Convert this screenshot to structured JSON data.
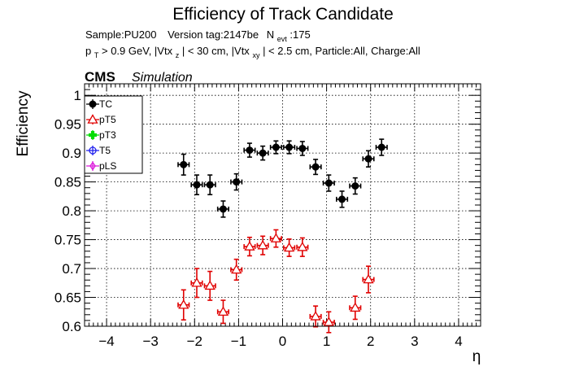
{
  "header": {
    "title": "Efficiency of Track Candidate",
    "info_line1": {
      "sample": "Sample:PU200",
      "version": "Version tag:2147be",
      "nevt_symbol": "N",
      "nevt_sub": "evt",
      "nevt_value": ":175"
    },
    "info_line2": {
      "pt_symbol": "p",
      "pt_sub": "T",
      "pt_cut": " > 0.9 GeV, |Vtx",
      "z_sub": "z",
      "z_cut": "| < 30 cm, |Vtx",
      "xy_sub": "xy",
      "rest": "| < 2.5 cm, Particle:All, Charge:All"
    },
    "cms_label": "CMS",
    "simulation_label": "Simulation"
  },
  "chart_data": {
    "type": "scatter",
    "xlabel": "η",
    "ylabel": "Efficiency",
    "xlim": [
      -4.5,
      4.5
    ],
    "ylim": [
      0.6,
      1.02
    ],
    "xticks": [
      -4,
      -3,
      -2,
      -1,
      0,
      1,
      2,
      3,
      4
    ],
    "xtick_labels": [
      "−4",
      "−3",
      "−2",
      "−1",
      "0",
      "1",
      "2",
      "3",
      "4"
    ],
    "yticks": [
      0.6,
      0.65,
      0.7,
      0.75,
      0.8,
      0.85,
      0.9,
      0.95,
      1.0
    ],
    "ytick_labels": [
      "0.6",
      "0.65",
      "0.7",
      "0.75",
      "0.8",
      "0.85",
      "0.9",
      "0.95",
      "1"
    ],
    "grid": true,
    "legend_position": "top-left",
    "x_bin_half_width": 0.125,
    "series": [
      {
        "name": "TC",
        "color": "#000000",
        "marker": "filled-circle",
        "x": [
          -2.25,
          -1.95,
          -1.65,
          -1.35,
          -1.05,
          -0.75,
          -0.45,
          -0.15,
          0.15,
          0.45,
          0.75,
          1.05,
          1.35,
          1.65,
          1.95,
          2.25
        ],
        "y": [
          0.88,
          0.845,
          0.845,
          0.803,
          0.85,
          0.905,
          0.9,
          0.91,
          0.91,
          0.908,
          0.876,
          0.848,
          0.82,
          0.843,
          0.89,
          0.91
        ],
        "yerr": [
          0.018,
          0.017,
          0.017,
          0.014,
          0.014,
          0.012,
          0.012,
          0.011,
          0.011,
          0.012,
          0.013,
          0.014,
          0.014,
          0.014,
          0.014,
          0.014
        ]
      },
      {
        "name": "pT5",
        "color": "#e00000",
        "marker": "open-triangle",
        "x": [
          -2.25,
          -1.95,
          -1.65,
          -1.35,
          -1.05,
          -0.75,
          -0.45,
          -0.15,
          0.15,
          0.45,
          0.75,
          1.05,
          1.35,
          1.65,
          1.95,
          2.25
        ],
        "y": [
          0.637,
          0.675,
          0.67,
          0.625,
          0.698,
          0.738,
          0.74,
          0.752,
          0.736,
          0.737,
          0.617,
          0.607,
          null,
          0.632,
          0.681,
          null
        ],
        "yerr": [
          0.026,
          0.025,
          0.025,
          0.02,
          0.018,
          0.016,
          0.016,
          0.015,
          0.015,
          0.016,
          0.018,
          0.018,
          null,
          0.02,
          0.023,
          null
        ]
      },
      {
        "name": "pT3",
        "color": "#00dd00",
        "marker": "filled-cross",
        "x": [],
        "y": []
      },
      {
        "name": "T5",
        "color": "#2222ee",
        "marker": "open-circle",
        "x": [],
        "y": []
      },
      {
        "name": "pLS",
        "color": "#dd22dd",
        "marker": "open-diamond",
        "x": [],
        "y": []
      }
    ]
  }
}
